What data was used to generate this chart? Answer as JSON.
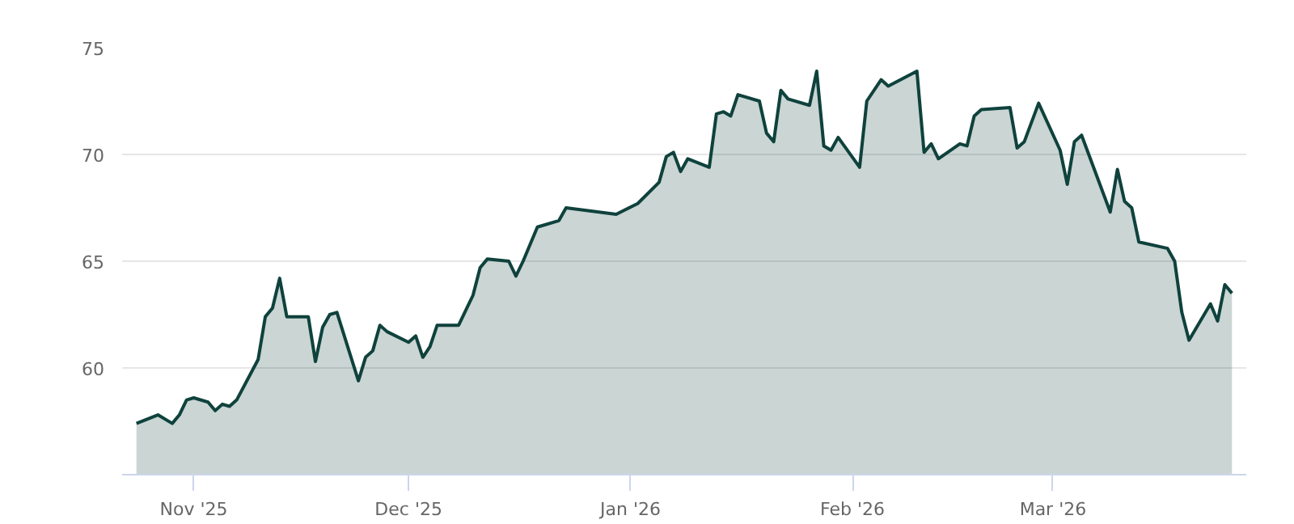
{
  "chart_data": {
    "type": "area",
    "x": [
      "2025-10-24",
      "2025-10-27",
      "2025-10-29",
      "2025-10-30",
      "2025-10-31",
      "2025-11-01",
      "2025-11-03",
      "2025-11-04",
      "2025-11-05",
      "2025-11-06",
      "2025-11-07",
      "2025-11-10",
      "2025-11-11",
      "2025-11-12",
      "2025-11-13",
      "2025-11-14",
      "2025-11-17",
      "2025-11-18",
      "2025-11-19",
      "2025-11-20",
      "2025-11-21",
      "2025-11-24",
      "2025-11-25",
      "2025-11-26",
      "2025-11-27",
      "2025-11-28",
      "2025-12-01",
      "2025-12-02",
      "2025-12-03",
      "2025-12-04",
      "2025-12-05",
      "2025-12-08",
      "2025-12-09",
      "2025-12-10",
      "2025-12-11",
      "2025-12-12",
      "2025-12-15",
      "2025-12-16",
      "2025-12-17",
      "2025-12-19",
      "2025-12-22",
      "2025-12-23",
      "2025-12-30",
      "2026-01-02",
      "2026-01-05",
      "2026-01-06",
      "2026-01-07",
      "2026-01-08",
      "2026-01-09",
      "2026-01-12",
      "2026-01-13",
      "2026-01-14",
      "2026-01-15",
      "2026-01-16",
      "2026-01-19",
      "2026-01-20",
      "2026-01-21",
      "2026-01-22",
      "2026-01-23",
      "2026-01-26",
      "2026-01-27",
      "2026-01-28",
      "2026-01-29",
      "2026-01-30",
      "2026-02-02",
      "2026-02-03",
      "2026-02-05",
      "2026-02-06",
      "2026-02-10",
      "2026-02-11",
      "2026-02-12",
      "2026-02-13",
      "2026-02-16",
      "2026-02-17",
      "2026-02-18",
      "2026-02-19",
      "2026-02-23",
      "2026-02-24",
      "2026-02-25",
      "2026-02-27",
      "2026-03-02",
      "2026-03-03",
      "2026-03-04",
      "2026-03-05",
      "2026-03-09",
      "2026-03-10",
      "2026-03-11",
      "2026-03-12",
      "2026-03-13",
      "2026-03-17",
      "2026-03-18",
      "2026-03-19",
      "2026-03-20",
      "2026-03-23",
      "2026-03-24",
      "2026-03-25",
      "2026-03-26"
    ],
    "series": [
      {
        "color": "#0f423c",
        "values": [
          57.4,
          57.8,
          57.4,
          57.8,
          58.5,
          58.6,
          58.4,
          58.0,
          58.3,
          58.2,
          58.5,
          60.4,
          62.4,
          62.8,
          64.2,
          62.4,
          62.4,
          60.3,
          61.9,
          62.5,
          62.6,
          59.4,
          60.5,
          60.8,
          62.0,
          61.7,
          61.2,
          61.5,
          60.5,
          61.0,
          62.0,
          62.0,
          62.7,
          63.4,
          64.7,
          65.1,
          65.0,
          64.3,
          65.0,
          66.6,
          66.9,
          67.5,
          67.2,
          67.7,
          68.7,
          69.9,
          70.1,
          69.2,
          69.8,
          69.4,
          71.9,
          72.0,
          71.8,
          72.8,
          72.5,
          71.0,
          70.6,
          73.0,
          72.6,
          72.3,
          73.9,
          70.4,
          70.2,
          70.8,
          69.4,
          72.5,
          73.5,
          73.2,
          73.9,
          70.1,
          70.5,
          69.8,
          70.5,
          70.4,
          71.8,
          72.1,
          72.2,
          70.3,
          70.6,
          72.4,
          70.2,
          68.6,
          70.6,
          70.9,
          67.3,
          69.3,
          67.8,
          67.5,
          65.9,
          65.6,
          65.0,
          62.6,
          61.3,
          63.0,
          62.2,
          63.9,
          63.5
        ]
      }
    ],
    "xlim": [
      "2025-10-22",
      "2026-03-28"
    ],
    "xticks": [
      {
        "value": "2025-11-01",
        "label": "Nov '25"
      },
      {
        "value": "2025-12-01",
        "label": "Dec '25"
      },
      {
        "value": "2026-01-01",
        "label": "Jan '26"
      },
      {
        "value": "2026-02-01",
        "label": "Feb '26"
      },
      {
        "value": "2026-03-01",
        "label": "Mar '26"
      }
    ],
    "ylim": [
      55,
      75
    ],
    "yticks": [
      60,
      65,
      70,
      75
    ],
    "grid": "y"
  }
}
